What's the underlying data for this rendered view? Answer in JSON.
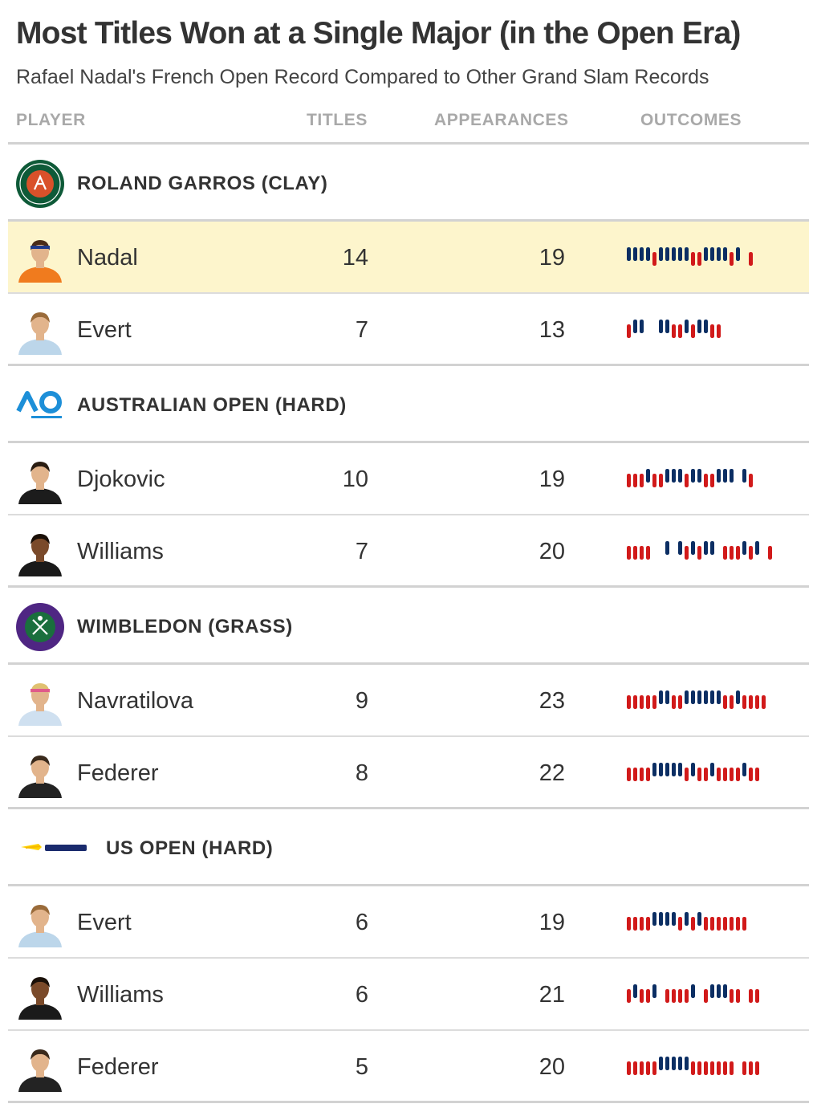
{
  "title": "Most Titles Won at a Single Major (in the Open Era)",
  "subtitle": "Rafael Nadal's French Open Record Compared to Other Grand Slam Records",
  "columns": {
    "player": "PLAYER",
    "titles": "TITLES",
    "appearances": "APPEARANCES",
    "outcomes": "OUTCOMES"
  },
  "colors": {
    "win": "#0b2e63",
    "loss": "#d11a1a",
    "highlight": "#fdf5cc"
  },
  "chart_data": {
    "type": "table",
    "groups": [
      {
        "label": "ROLAND GARROS (CLAY)",
        "icon": "roland-garros-logo",
        "players": [
          {
            "name": "Nadal",
            "titles": 14,
            "appearances": 19,
            "highlight": true,
            "avatar": "nadal-avatar",
            "outcomes": "WWWWLWWWWWLLWWWWLW_L"
          },
          {
            "name": "Evert",
            "titles": 7,
            "appearances": 13,
            "highlight": false,
            "avatar": "evert-avatar",
            "outcomes": "LWW__WWLLWLWWLL"
          }
        ]
      },
      {
        "label": "AUSTRALIAN OPEN (HARD)",
        "icon": "australian-open-logo",
        "players": [
          {
            "name": "Djokovic",
            "titles": 10,
            "appearances": 19,
            "highlight": false,
            "avatar": "djokovic-avatar",
            "outcomes": "LLLWLLWWWLWWLLWWW_WL"
          },
          {
            "name": "Williams",
            "titles": 7,
            "appearances": 20,
            "highlight": false,
            "avatar": "williams-avatar",
            "outcomes": "LLLL__W_WLWLWW_LLLWLW_L"
          }
        ]
      },
      {
        "label": "WIMBLEDON (GRASS)",
        "icon": "wimbledon-logo",
        "players": [
          {
            "name": "Navratilova",
            "titles": 9,
            "appearances": 23,
            "highlight": false,
            "avatar": "navratilova-avatar",
            "outcomes": "LLLLLWWLLWWWWWWLLWLLLL"
          },
          {
            "name": "Federer",
            "titles": 8,
            "appearances": 22,
            "highlight": false,
            "avatar": "federer-avatar",
            "outcomes": "LLLLWWWWWLWLLWLLLLWLL"
          }
        ]
      },
      {
        "label": "US OPEN (HARD)",
        "icon": "us-open-logo",
        "players": [
          {
            "name": "Evert",
            "titles": 6,
            "appearances": 19,
            "highlight": false,
            "avatar": "evert-avatar",
            "outcomes": "LLLLWWWWLWLWLLLLLLL"
          },
          {
            "name": "Williams",
            "titles": 6,
            "appearances": 21,
            "highlight": false,
            "avatar": "williams-avatar",
            "outcomes": "LWLLW_LLLLW_LWWWLL_LL"
          },
          {
            "name": "Federer",
            "titles": 5,
            "appearances": 20,
            "highlight": false,
            "avatar": "federer-avatar",
            "outcomes": "LLLLLWWWWWLLLLLLL_LLL"
          }
        ]
      }
    ]
  }
}
